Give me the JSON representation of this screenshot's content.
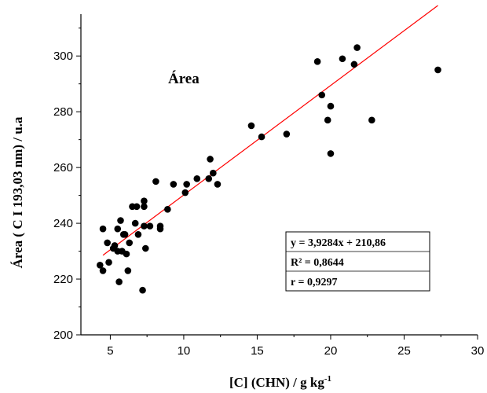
{
  "chart_data": {
    "type": "scatter",
    "title": "Área",
    "xlabel": "[C] (CHN) / g kg",
    "xlabel_sup": "-1",
    "ylabel": "Área ( C I 193,03 nm) / u.a",
    "xlim": [
      3,
      30
    ],
    "ylim": [
      200,
      315
    ],
    "x_ticks": [
      5,
      10,
      15,
      20,
      25,
      30
    ],
    "y_ticks": [
      200,
      220,
      240,
      260,
      280,
      300
    ],
    "x_tick_labels": [
      "5",
      "10",
      "15",
      "20",
      "25",
      "30"
    ],
    "y_tick_labels": [
      "200",
      "220",
      "240",
      "260",
      "280",
      "300"
    ],
    "grid": false,
    "point_color": "#000000",
    "fit_color": "#ff0000",
    "points": [
      {
        "x": 4.3,
        "y": 225
      },
      {
        "x": 4.5,
        "y": 223
      },
      {
        "x": 4.5,
        "y": 238
      },
      {
        "x": 4.8,
        "y": 233
      },
      {
        "x": 4.9,
        "y": 226
      },
      {
        "x": 5.2,
        "y": 231
      },
      {
        "x": 5.3,
        "y": 232
      },
      {
        "x": 5.5,
        "y": 230
      },
      {
        "x": 5.5,
        "y": 238
      },
      {
        "x": 5.6,
        "y": 219
      },
      {
        "x": 5.7,
        "y": 241
      },
      {
        "x": 5.8,
        "y": 230
      },
      {
        "x": 5.9,
        "y": 236
      },
      {
        "x": 6.0,
        "y": 236
      },
      {
        "x": 6.1,
        "y": 229
      },
      {
        "x": 6.2,
        "y": 223
      },
      {
        "x": 6.3,
        "y": 233
      },
      {
        "x": 6.5,
        "y": 246
      },
      {
        "x": 6.7,
        "y": 240
      },
      {
        "x": 6.8,
        "y": 246
      },
      {
        "x": 6.9,
        "y": 236
      },
      {
        "x": 7.2,
        "y": 216
      },
      {
        "x": 7.3,
        "y": 239
      },
      {
        "x": 7.3,
        "y": 246
      },
      {
        "x": 7.3,
        "y": 248
      },
      {
        "x": 7.4,
        "y": 231
      },
      {
        "x": 7.7,
        "y": 239
      },
      {
        "x": 8.1,
        "y": 255
      },
      {
        "x": 8.4,
        "y": 239
      },
      {
        "x": 8.4,
        "y": 238
      },
      {
        "x": 8.9,
        "y": 245
      },
      {
        "x": 9.3,
        "y": 254
      },
      {
        "x": 10.1,
        "y": 251
      },
      {
        "x": 10.2,
        "y": 254
      },
      {
        "x": 10.9,
        "y": 256
      },
      {
        "x": 11.7,
        "y": 256
      },
      {
        "x": 11.8,
        "y": 263
      },
      {
        "x": 12.0,
        "y": 258
      },
      {
        "x": 12.3,
        "y": 254
      },
      {
        "x": 14.6,
        "y": 275
      },
      {
        "x": 15.3,
        "y": 271
      },
      {
        "x": 17.0,
        "y": 272
      },
      {
        "x": 19.1,
        "y": 298
      },
      {
        "x": 19.4,
        "y": 286
      },
      {
        "x": 19.8,
        "y": 277
      },
      {
        "x": 20.0,
        "y": 265
      },
      {
        "x": 20.0,
        "y": 282
      },
      {
        "x": 20.8,
        "y": 299
      },
      {
        "x": 21.6,
        "y": 297
      },
      {
        "x": 21.8,
        "y": 303
      },
      {
        "x": 22.8,
        "y": 277
      },
      {
        "x": 27.3,
        "y": 295
      }
    ],
    "fit": {
      "slope": 3.9284,
      "intercept": 210.86,
      "x_range": [
        4.5,
        27.3
      ]
    },
    "annotation_lines": [
      "y = 3,9284x + 210,86",
      "R² = 0,8644",
      "r = 0,9297"
    ]
  }
}
